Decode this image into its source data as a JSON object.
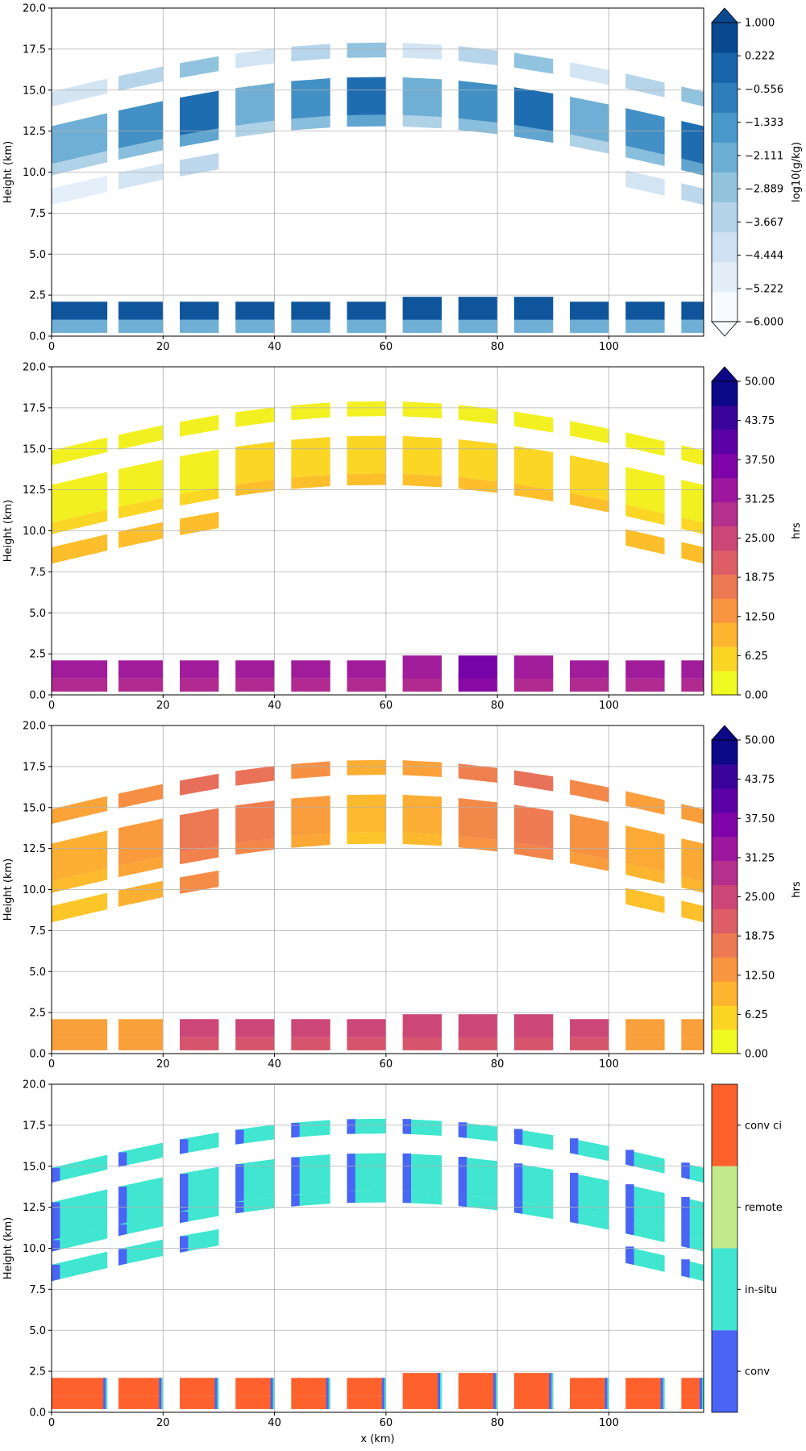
{
  "chart_data": [
    {
      "type": "heatmap",
      "panel": "panel-1",
      "ylabel": "Height (km)",
      "xlabel": "",
      "xlim": [
        0,
        117
      ],
      "ylim": [
        0,
        20
      ],
      "xticks": [
        "0",
        "20",
        "40",
        "60",
        "80",
        "100"
      ],
      "yticks": [
        "0.0",
        "2.5",
        "5.0",
        "7.5",
        "10.0",
        "12.5",
        "15.0",
        "17.5",
        "20.0"
      ],
      "grid": true,
      "colorbar": {
        "label": "log10(g/kg)",
        "ticks": [
          "1.000",
          "0.222",
          "−0.556",
          "−1.333",
          "−2.111",
          "−2.889",
          "−3.667",
          "−4.444",
          "−5.222",
          "−6.000"
        ],
        "extend": "both",
        "colors": [
          "#f7fbff",
          "#e3eef9",
          "#cfe1f2",
          "#b5d4e9",
          "#93c4de",
          "#6daed5",
          "#4a98c9",
          "#2e7ebc",
          "#1764ab",
          "#084990"
        ]
      }
    },
    {
      "type": "heatmap",
      "panel": "panel-2",
      "ylabel": "Height (km)",
      "xlabel": "",
      "xlim": [
        0,
        117
      ],
      "ylim": [
        0,
        20
      ],
      "xticks": [
        "0",
        "20",
        "40",
        "60",
        "80",
        "100"
      ],
      "yticks": [
        "0.0",
        "2.5",
        "5.0",
        "7.5",
        "10.0",
        "12.5",
        "15.0",
        "17.5",
        "20.0"
      ],
      "grid": true,
      "colorbar": {
        "label": "hrs",
        "ticks": [
          "50.00",
          "43.75",
          "37.50",
          "31.25",
          "25.00",
          "18.75",
          "12.50",
          "6.25",
          "0.00"
        ],
        "extend": "max",
        "colors": [
          "#f0f921",
          "#fbd524",
          "#fdb42f",
          "#f89540",
          "#ed7953",
          "#dd5e66",
          "#cc4778",
          "#b52f8c",
          "#9c179e",
          "#7e03a8",
          "#5c01a6",
          "#3a049a",
          "#0d0887"
        ]
      }
    },
    {
      "type": "heatmap",
      "panel": "panel-3",
      "ylabel": "Height (km)",
      "xlabel": "",
      "xlim": [
        0,
        117
      ],
      "ylim": [
        0,
        20
      ],
      "xticks": [
        "0",
        "20",
        "40",
        "60",
        "80",
        "100"
      ],
      "yticks": [
        "0.0",
        "2.5",
        "5.0",
        "7.5",
        "10.0",
        "12.5",
        "15.0",
        "17.5",
        "20.0"
      ],
      "grid": true,
      "colorbar": {
        "label": "hrs",
        "ticks": [
          "50.00",
          "43.75",
          "37.50",
          "31.25",
          "25.00",
          "18.75",
          "12.50",
          "6.25",
          "0.00"
        ],
        "extend": "max",
        "colors": [
          "#f0f921",
          "#fbd524",
          "#fdb42f",
          "#f89540",
          "#ed7953",
          "#dd5e66",
          "#cc4778",
          "#b52f8c",
          "#9c179e",
          "#7e03a8",
          "#5c01a6",
          "#3a049a",
          "#0d0887"
        ]
      }
    },
    {
      "type": "heatmap",
      "panel": "panel-4",
      "ylabel": "Height (km)",
      "xlabel": "x (km)",
      "xlim": [
        0,
        117
      ],
      "ylim": [
        0,
        20
      ],
      "xticks": [
        "0",
        "20",
        "40",
        "60",
        "80",
        "100"
      ],
      "yticks": [
        "0.0",
        "2.5",
        "5.0",
        "7.5",
        "10.0",
        "12.5",
        "15.0",
        "17.5",
        "20.0"
      ],
      "grid": true,
      "colorbar": {
        "label": "",
        "categories": [
          "conv ci",
          "remote",
          "in-situ",
          "conv"
        ],
        "colors": [
          "#fe612c",
          "#c3e98d",
          "#40e6cf",
          "#4a64f5"
        ]
      }
    }
  ]
}
